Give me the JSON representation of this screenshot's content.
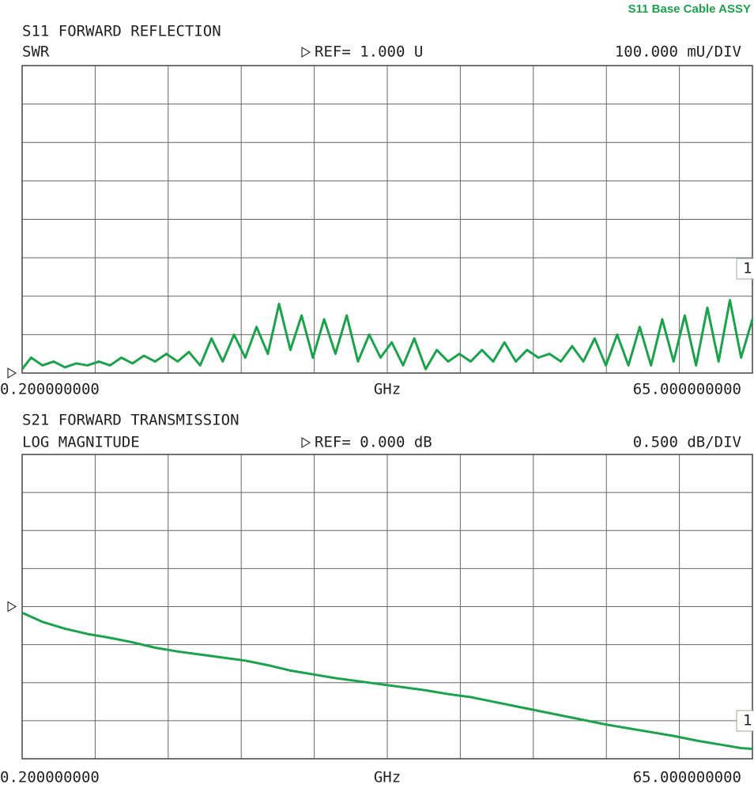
{
  "banner": "S11  Base Cable ASSY",
  "chart_data": [
    {
      "type": "line",
      "title": "S11 FORWARD REFLECTION",
      "subtitle": "SWR",
      "ref": {
        "value": 1.0,
        "label": "REF= 1.000 U"
      },
      "scale_label": "100.000 mU/DIV",
      "xlabel": "GHz",
      "marker": "1",
      "grid": true,
      "xlim": [
        0.2,
        65
      ],
      "ylim": [
        1.0,
        1.8
      ],
      "xticks": [
        {
          "value": 0.2,
          "label": "0.200000000"
        },
        {
          "value": 65,
          "label": "65.000000000"
        }
      ],
      "x": [
        0.2,
        1,
        2,
        3,
        4,
        5,
        6,
        7,
        8,
        9,
        10,
        11,
        12,
        13,
        14,
        15,
        16,
        17,
        18,
        19,
        20,
        21,
        22,
        23,
        24,
        25,
        26,
        27,
        28,
        29,
        30,
        31,
        32,
        33,
        34,
        35,
        36,
        37,
        38,
        39,
        40,
        41,
        42,
        43,
        44,
        45,
        46,
        47,
        48,
        49,
        50,
        51,
        52,
        53,
        54,
        55,
        56,
        57,
        58,
        59,
        60,
        61,
        62,
        63,
        64,
        65
      ],
      "series": [
        {
          "color": "#1aa34a",
          "values": [
            1.01,
            1.04,
            1.02,
            1.03,
            1.015,
            1.025,
            1.02,
            1.03,
            1.02,
            1.04,
            1.025,
            1.045,
            1.03,
            1.05,
            1.03,
            1.055,
            1.02,
            1.09,
            1.03,
            1.1,
            1.04,
            1.12,
            1.05,
            1.18,
            1.06,
            1.15,
            1.04,
            1.14,
            1.05,
            1.15,
            1.03,
            1.1,
            1.04,
            1.08,
            1.02,
            1.09,
            1.01,
            1.06,
            1.03,
            1.05,
            1.03,
            1.06,
            1.03,
            1.08,
            1.03,
            1.06,
            1.04,
            1.05,
            1.03,
            1.07,
            1.03,
            1.09,
            1.02,
            1.1,
            1.02,
            1.12,
            1.02,
            1.14,
            1.03,
            1.15,
            1.02,
            1.17,
            1.03,
            1.19,
            1.04,
            1.14
          ]
        }
      ]
    },
    {
      "type": "line",
      "title": "S21 FORWARD TRANSMISSION",
      "subtitle": "LOG MAGNITUDE",
      "ref": {
        "value": 0,
        "label": "REF= 0.000 dB"
      },
      "scale_label": "0.500 dB/DIV",
      "xlabel": "GHz",
      "marker": "1",
      "grid": true,
      "xlim": [
        0.2,
        65
      ],
      "ylim": [
        -2,
        2
      ],
      "xticks": [
        {
          "value": 0.2,
          "label": "0.200000000"
        },
        {
          "value": 65,
          "label": "65.000000000"
        }
      ],
      "x": [
        0.2,
        2,
        4,
        6,
        8,
        10,
        12,
        14,
        16,
        18,
        20,
        22,
        24,
        26,
        28,
        30,
        32,
        34,
        36,
        38,
        40,
        42,
        44,
        46,
        48,
        50,
        52,
        54,
        56,
        58,
        60,
        62,
        64,
        65
      ],
      "series": [
        {
          "color": "#1aa34a",
          "values": [
            -0.08,
            -0.2,
            -0.29,
            -0.36,
            -0.41,
            -0.47,
            -0.54,
            -0.59,
            -0.63,
            -0.67,
            -0.71,
            -0.77,
            -0.84,
            -0.89,
            -0.94,
            -0.98,
            -1.02,
            -1.06,
            -1.1,
            -1.15,
            -1.19,
            -1.25,
            -1.31,
            -1.37,
            -1.43,
            -1.49,
            -1.55,
            -1.6,
            -1.65,
            -1.7,
            -1.76,
            -1.81,
            -1.86,
            -1.87
          ]
        }
      ]
    }
  ]
}
